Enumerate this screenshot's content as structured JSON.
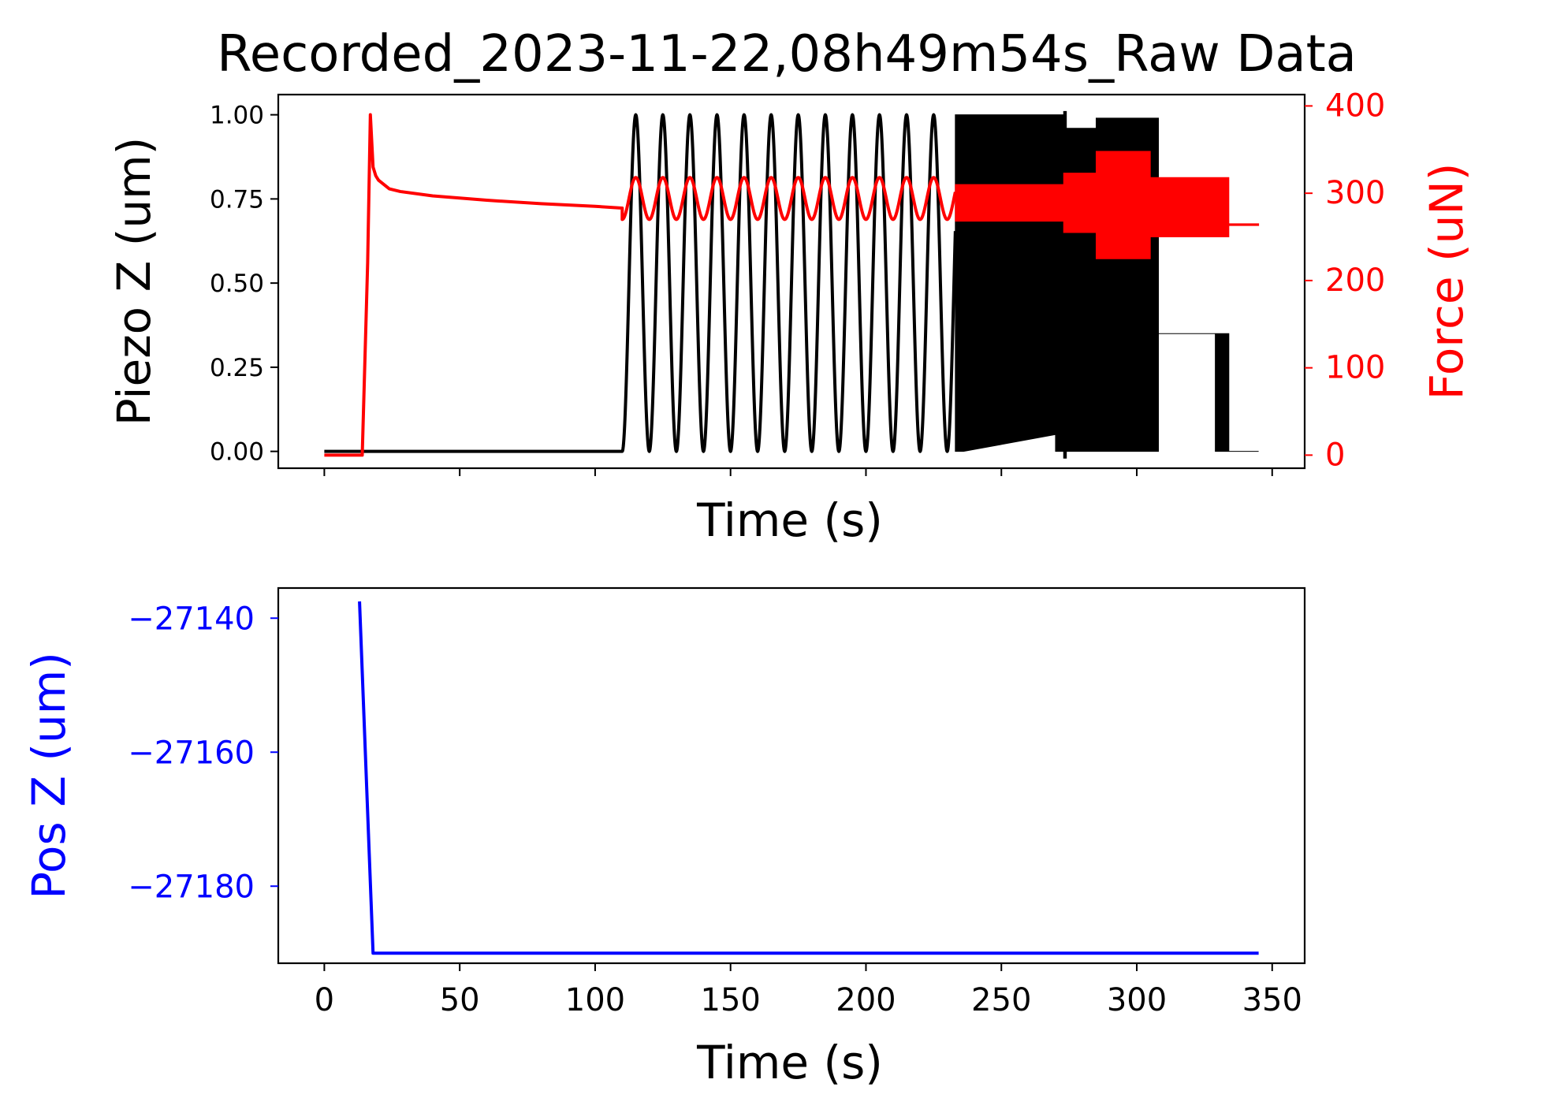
{
  "chart_data": [
    {
      "type": "line",
      "title": "Recorded_2023-11-22,08h49m54s_Raw Data",
      "xlabel": "Time (s)",
      "ylabel": "Piezo Z (um)",
      "y2label": "Force (uN)",
      "xlim": [
        -17,
        362
      ],
      "ylim": [
        -0.05,
        1.06
      ],
      "y2lim": [
        -15,
        413
      ],
      "xticks": [
        0,
        50,
        100,
        150,
        200,
        250,
        300,
        350
      ],
      "yticks": [
        0.0,
        0.25,
        0.5,
        0.75,
        1.0
      ],
      "ytick_labels": [
        "0.00",
        "0.25",
        "0.50",
        "0.75",
        "1.00"
      ],
      "y2ticks": [
        0,
        100,
        200,
        300,
        400
      ],
      "y2tick_labels": [
        "0",
        "100",
        "200",
        "300",
        "400"
      ],
      "show_x_ticklabels": false,
      "grid": false,
      "colors": {
        "piezo": "#000000",
        "force": "#ff0000"
      },
      "series": [
        {
          "axis": "left",
          "segments": [
            {
              "kind": "line",
              "x": [
                0,
                110,
                110
              ],
              "y": [
                0,
                0,
                0
              ]
            },
            {
              "kind": "sine",
              "x0": 110,
              "x1": 233,
              "period": 10,
              "ymin": 0,
              "ymax": 1.0
            },
            {
              "kind": "band",
              "x": [
                233,
                236,
                236,
                270,
                270,
                273,
                273,
                274,
                274,
                285,
                285,
                300,
                300,
                308,
                308,
                329,
                329,
                334,
                334,
                345
              ],
              "ylow": [
                0,
                0,
                0,
                0.05,
                0,
                0,
                -0.02,
                -0.02,
                0,
                0,
                0,
                0,
                0.0,
                0.0,
                0.35,
                0.35,
                0,
                0,
                0,
                0
              ],
              "yhigh": [
                1.0,
                1.0,
                1.0,
                1.0,
                1.0,
                1.0,
                1.01,
                1.01,
                0.96,
                0.96,
                0.99,
                0.99,
                0.99,
                0.99,
                0.35,
                0.35,
                0.35,
                0.35,
                0,
                0
              ]
            }
          ]
        },
        {
          "axis": "right",
          "segments": [
            {
              "kind": "line",
              "x": [
                0,
                14,
                16,
                17,
                18,
                19,
                20,
                22,
                24,
                28,
                40,
                60,
                80,
                100,
                110
              ],
              "y": [
                0,
                0,
                220,
                390,
                330,
                320,
                315,
                310,
                305,
                302,
                297,
                292,
                288,
                285,
                283
              ]
            },
            {
              "kind": "sine",
              "x0": 110,
              "x1": 233,
              "period": 10,
              "ymin": 270,
              "ymax": 318
            },
            {
              "kind": "band",
              "x": [
                233,
                273,
                273,
                285,
                285,
                305,
                305,
                334,
                334,
                345
              ],
              "ylow": [
                268,
                268,
                255,
                255,
                225,
                225,
                250,
                250,
                263,
                263
              ],
              "yhigh": [
                310,
                310,
                323,
                323,
                348,
                348,
                318,
                318,
                265,
                265
              ]
            }
          ]
        }
      ]
    },
    {
      "type": "line",
      "xlabel": "Time (s)",
      "ylabel": "Pos Z (um)",
      "xlim": [
        -17,
        362
      ],
      "ylim": [
        -27191.5,
        -27135.5
      ],
      "xticks": [
        0,
        50,
        100,
        150,
        200,
        250,
        300,
        350
      ],
      "xtick_labels": [
        "0",
        "50",
        "100",
        "150",
        "200",
        "250",
        "300",
        "350"
      ],
      "yticks": [
        -27140,
        -27160,
        -27180
      ],
      "ytick_labels": [
        "−27140",
        "−27160",
        "−27180"
      ],
      "grid": false,
      "colors": {
        "pos": "#0000ff"
      },
      "series": [
        {
          "x": [
            13,
            18,
            345
          ],
          "y": [
            -27137.5,
            -27190,
            -27190
          ]
        }
      ]
    }
  ]
}
